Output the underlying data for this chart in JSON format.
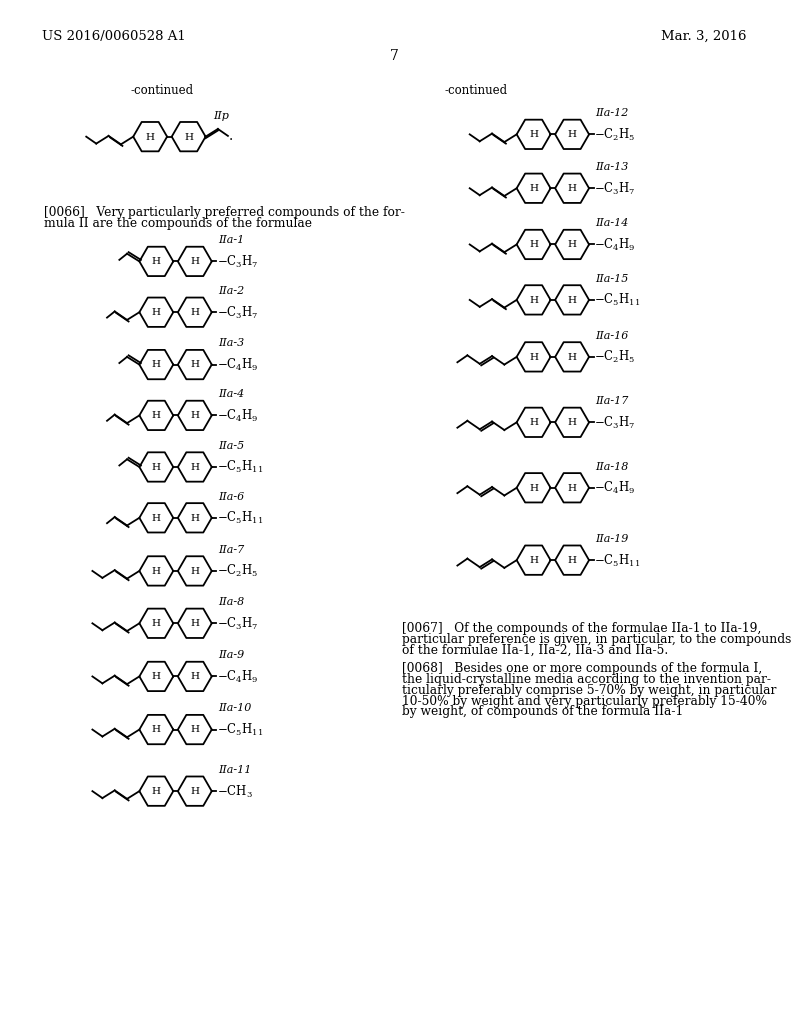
{
  "background": "#ffffff",
  "header_left": "US 2016/0060528 A1",
  "header_right": "Mar. 3, 2016",
  "page_number": "7",
  "continued_left": "-continued",
  "continued_right": "-continued",
  "para_0066_lines": [
    "[0066]   Very particularly preferred compounds of the for-",
    "mula II are the compounds of the formulae"
  ],
  "para_0067_lines": [
    "[0067]   Of the compounds of the formulae IIa-1 to IIa-19,",
    "particular preference is given, in particular, to the compounds",
    "of the formulae IIa-1, IIa-2, IIa-3 and IIa-5."
  ],
  "para_0068_lines": [
    "[0068]   Besides one or more compounds of the formula I,",
    "the liquid-crystalline media according to the invention par-",
    "ticularly preferably comprise 5-70% by weight, in particular",
    "10-50% by weight and very particularly preferably 15-40%",
    "by weight, of compounds of the formula IIa-1"
  ]
}
